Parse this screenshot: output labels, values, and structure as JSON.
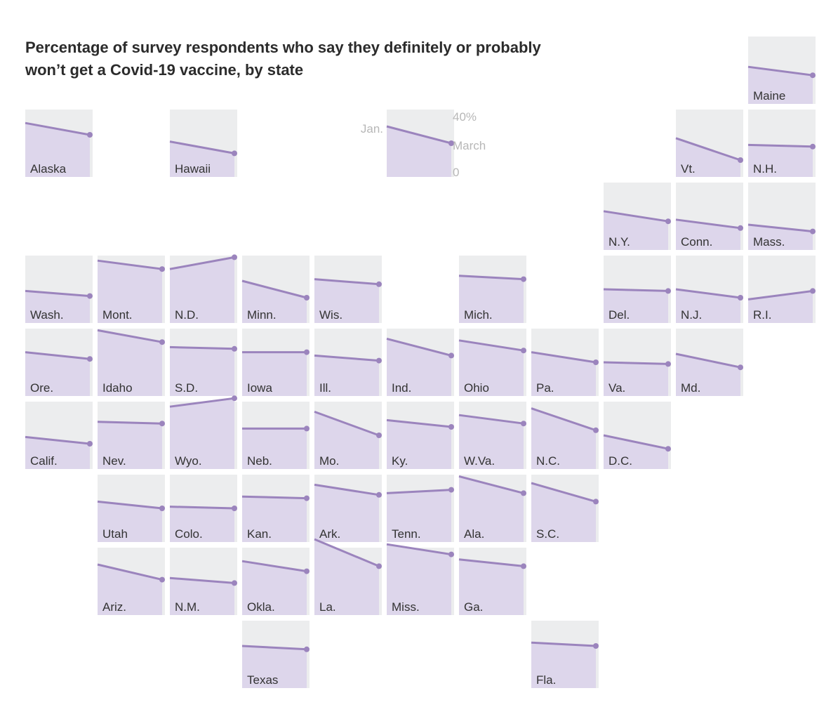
{
  "chart_data": {
    "type": "line",
    "title_lines": [
      "Percentage of survey respondents who say they definitely or probably",
      "won’t get a Covid-19 vaccine, by state"
    ],
    "ylim": [
      0,
      40
    ],
    "legend": {
      "ymax_label": "40%",
      "start_label": "Jan.",
      "end_label": "March",
      "ymin_label": "0",
      "start": 30,
      "end": 20
    },
    "colors": {
      "line": "#9b84bd",
      "area": "#ddd6eb",
      "background": "#ecedee",
      "legend_text": "#b7b7b7"
    },
    "states": [
      {
        "name": "Maine",
        "row": 0,
        "col": 10,
        "start": 22,
        "end": 17
      },
      {
        "name": "Alaska",
        "row": 1,
        "col": 0,
        "start": 32,
        "end": 25
      },
      {
        "name": "Hawaii",
        "row": 1,
        "col": 2,
        "start": 21,
        "end": 14
      },
      {
        "name": "Vt.",
        "row": 1,
        "col": 9,
        "start": 23,
        "end": 10
      },
      {
        "name": "N.H.",
        "row": 1,
        "col": 10,
        "start": 19,
        "end": 18
      },
      {
        "name": "N.Y.",
        "row": 2,
        "col": 8,
        "start": 23,
        "end": 17
      },
      {
        "name": "Conn.",
        "row": 2,
        "col": 9,
        "start": 18,
        "end": 13
      },
      {
        "name": "Mass.",
        "row": 2,
        "col": 10,
        "start": 15,
        "end": 11
      },
      {
        "name": "Wash.",
        "row": 3,
        "col": 0,
        "start": 19,
        "end": 16
      },
      {
        "name": "Mont.",
        "row": 3,
        "col": 1,
        "start": 37,
        "end": 32
      },
      {
        "name": "N.D.",
        "row": 3,
        "col": 2,
        "start": 32,
        "end": 39
      },
      {
        "name": "Minn.",
        "row": 3,
        "col": 3,
        "start": 25,
        "end": 15
      },
      {
        "name": "Wis.",
        "row": 3,
        "col": 4,
        "start": 26,
        "end": 23
      },
      {
        "name": "Mich.",
        "row": 3,
        "col": 6,
        "start": 28,
        "end": 26
      },
      {
        "name": "Del.",
        "row": 3,
        "col": 8,
        "start": 20,
        "end": 19
      },
      {
        "name": "N.J.",
        "row": 3,
        "col": 9,
        "start": 20,
        "end": 15
      },
      {
        "name": "R.I.",
        "row": 3,
        "col": 10,
        "start": 14,
        "end": 19
      },
      {
        "name": "Ore.",
        "row": 4,
        "col": 0,
        "start": 26,
        "end": 22
      },
      {
        "name": "Idaho",
        "row": 4,
        "col": 1,
        "start": 39,
        "end": 32
      },
      {
        "name": "S.D.",
        "row": 4,
        "col": 2,
        "start": 29,
        "end": 28
      },
      {
        "name": "Iowa",
        "row": 4,
        "col": 3,
        "start": 26,
        "end": 26
      },
      {
        "name": "Ill.",
        "row": 4,
        "col": 4,
        "start": 24,
        "end": 21
      },
      {
        "name": "Ind.",
        "row": 4,
        "col": 5,
        "start": 34,
        "end": 24
      },
      {
        "name": "Ohio",
        "row": 4,
        "col": 6,
        "start": 33,
        "end": 27
      },
      {
        "name": "Pa.",
        "row": 4,
        "col": 7,
        "start": 26,
        "end": 20
      },
      {
        "name": "Va.",
        "row": 4,
        "col": 8,
        "start": 20,
        "end": 19
      },
      {
        "name": "Md.",
        "row": 4,
        "col": 9,
        "start": 25,
        "end": 17
      },
      {
        "name": "Calif.",
        "row": 5,
        "col": 0,
        "start": 19,
        "end": 15
      },
      {
        "name": "Nev.",
        "row": 5,
        "col": 1,
        "start": 28,
        "end": 27
      },
      {
        "name": "Wyo.",
        "row": 5,
        "col": 2,
        "start": 37,
        "end": 42
      },
      {
        "name": "Neb.",
        "row": 5,
        "col": 3,
        "start": 24,
        "end": 24
      },
      {
        "name": "Mo.",
        "row": 5,
        "col": 4,
        "start": 34,
        "end": 20
      },
      {
        "name": "Ky.",
        "row": 5,
        "col": 5,
        "start": 29,
        "end": 25
      },
      {
        "name": "W.Va.",
        "row": 5,
        "col": 6,
        "start": 32,
        "end": 27
      },
      {
        "name": "N.C.",
        "row": 5,
        "col": 7,
        "start": 36,
        "end": 23
      },
      {
        "name": "D.C.",
        "row": 5,
        "col": 8,
        "start": 20,
        "end": 12
      },
      {
        "name": "Utah",
        "row": 6,
        "col": 1,
        "start": 24,
        "end": 20
      },
      {
        "name": "Colo.",
        "row": 6,
        "col": 2,
        "start": 21,
        "end": 20
      },
      {
        "name": "Kan.",
        "row": 6,
        "col": 3,
        "start": 27,
        "end": 26
      },
      {
        "name": "Ark.",
        "row": 6,
        "col": 4,
        "start": 34,
        "end": 28
      },
      {
        "name": "Tenn.",
        "row": 6,
        "col": 5,
        "start": 29,
        "end": 31
      },
      {
        "name": "Ala.",
        "row": 6,
        "col": 6,
        "start": 39,
        "end": 29
      },
      {
        "name": "S.C.",
        "row": 6,
        "col": 7,
        "start": 35,
        "end": 24
      },
      {
        "name": "Ariz.",
        "row": 7,
        "col": 1,
        "start": 30,
        "end": 21
      },
      {
        "name": "N.M.",
        "row": 7,
        "col": 2,
        "start": 22,
        "end": 19
      },
      {
        "name": "Okla.",
        "row": 7,
        "col": 3,
        "start": 32,
        "end": 26
      },
      {
        "name": "La.",
        "row": 7,
        "col": 4,
        "start": 45,
        "end": 29
      },
      {
        "name": "Miss.",
        "row": 7,
        "col": 5,
        "start": 42,
        "end": 36
      },
      {
        "name": "Ga.",
        "row": 7,
        "col": 6,
        "start": 33,
        "end": 29
      },
      {
        "name": "Texas",
        "row": 8,
        "col": 3,
        "start": 25,
        "end": 23
      },
      {
        "name": "Fla.",
        "row": 8,
        "col": 7,
        "start": 27,
        "end": 25
      }
    ]
  }
}
